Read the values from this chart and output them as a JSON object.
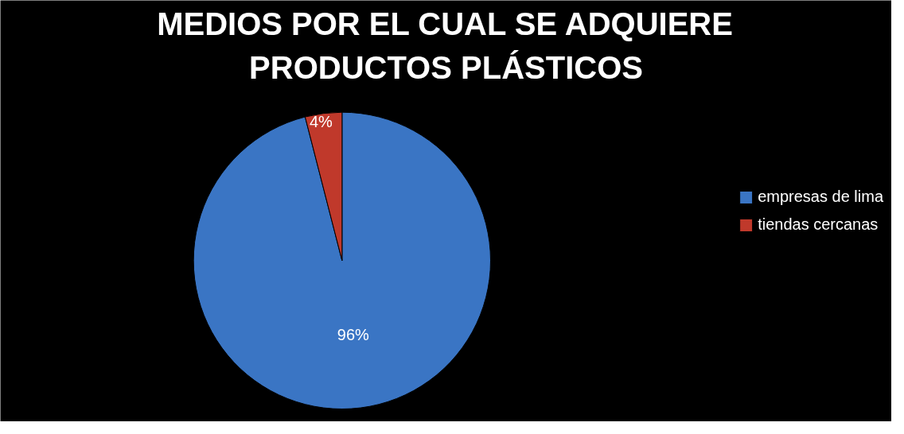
{
  "chart_data": {
    "type": "pie",
    "title": "MEDIOS POR EL CUAL SE ADQUIERE\nPRODUCTOS PLÁSTICOS",
    "categories": [
      "empresas de lima",
      "tiendas cercanas"
    ],
    "values": [
      96,
      4
    ],
    "colors": [
      "#3a75c4",
      "#c0392b"
    ],
    "value_labels": [
      "96%",
      "4%"
    ],
    "legend": "right"
  }
}
